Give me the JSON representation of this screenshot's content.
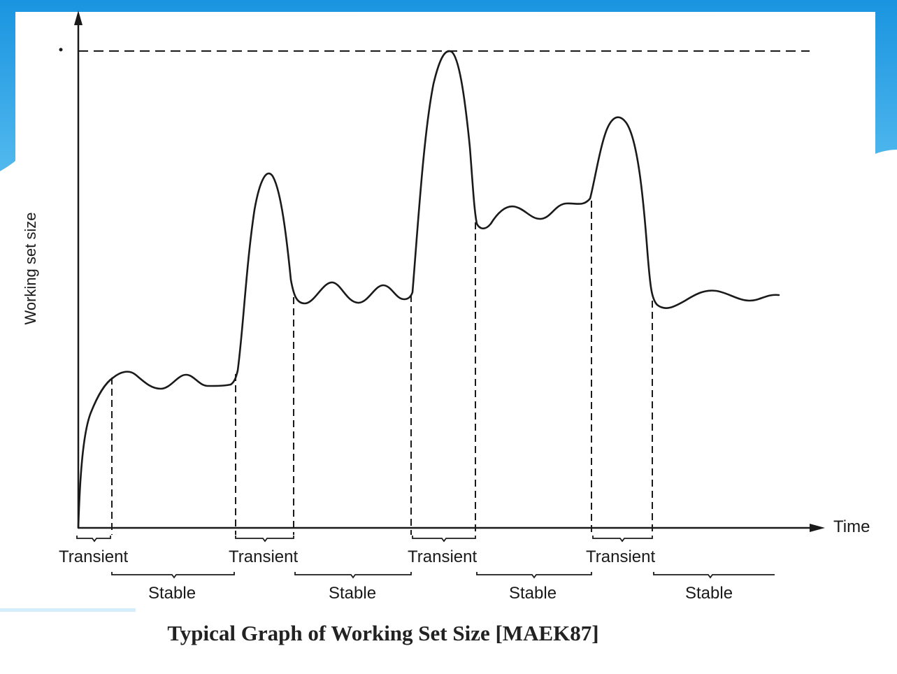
{
  "diagram": {
    "y_axis_label": "Working set size",
    "x_axis_label": "Time",
    "caption": "Typical Graph of Working Set Size [MAEK87]",
    "phases": [
      {
        "label": "Transient",
        "kind": "transient"
      },
      {
        "label": "Stable",
        "kind": "stable"
      },
      {
        "label": "Transient",
        "kind": "transient"
      },
      {
        "label": "Stable",
        "kind": "stable"
      },
      {
        "label": "Transient",
        "kind": "transient"
      },
      {
        "label": "Stable",
        "kind": "stable"
      },
      {
        "label": "Transient",
        "kind": "transient"
      },
      {
        "label": "Stable",
        "kind": "stable"
      }
    ]
  },
  "colors": {
    "accent_blue": "#1a94e0",
    "accent_light_blue": "#6cc8f3",
    "ink": "#1a1a1a"
  }
}
